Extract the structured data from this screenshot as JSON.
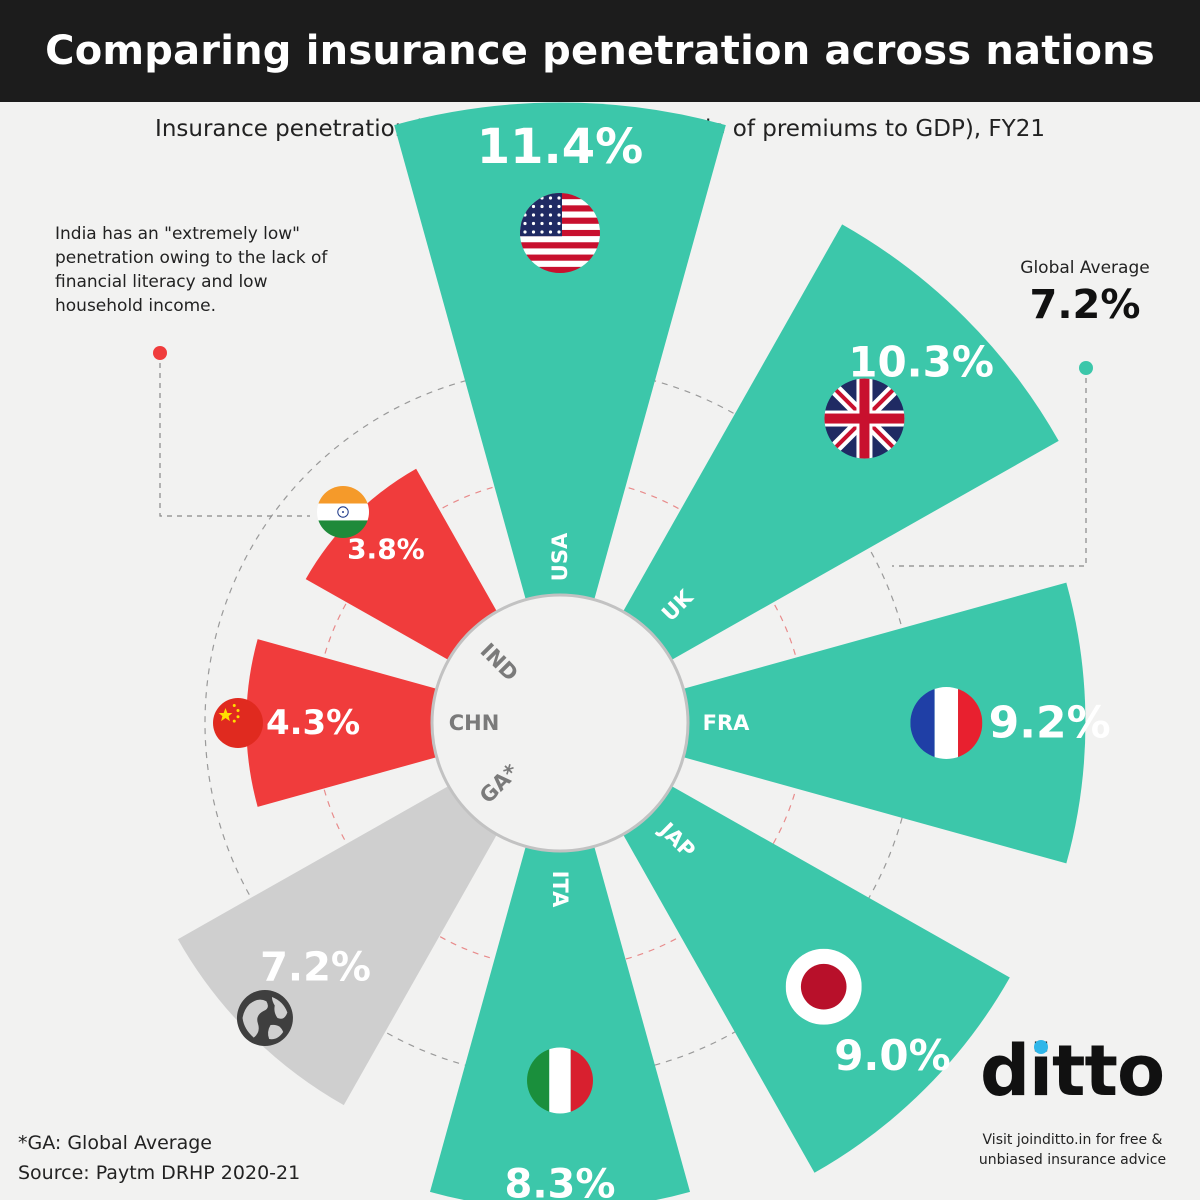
{
  "header": {
    "title": "Comparing insurance penetration across nations"
  },
  "chart_data": {
    "type": "bar",
    "title": "Comparing insurance penetration across nations",
    "subtitle": "Insurance penetration in selected countries (ratio of premiums to GDP), FY21",
    "categories": [
      "USA",
      "UK",
      "FRA",
      "JAP",
      "ITA",
      "GA*",
      "CHN",
      "IND"
    ],
    "values": [
      11.4,
      10.3,
      9.2,
      9.0,
      8.3,
      7.2,
      4.3,
      3.8
    ],
    "value_labels": [
      "11.4%",
      "10.3%",
      "9.2%",
      "9.0%",
      "8.3%",
      "7.2%",
      "4.3%",
      "3.8%"
    ],
    "flags": [
      "us-flag",
      "uk-flag",
      "france-flag",
      "japan-flag",
      "italy-flag",
      "globe-icon",
      "china-flag",
      "india-flag"
    ],
    "colors": {
      "above_average": "#3cc7aa",
      "below_average": "#f03c3c",
      "global_average": "#cfcfcf",
      "center_circle": "#f2f2f1"
    },
    "legend": "none",
    "grid": false
  },
  "annotation": {
    "india_note": "India has an \"extremely low\" penetration owing to the lack of financial literacy and low household income.",
    "global_average_label": "Global Average",
    "global_average_value": "7.2%"
  },
  "footer": {
    "footnote": "*GA: Global Average",
    "source": "Source: Paytm DRHP 2020-21",
    "brand": "ditto",
    "tagline": "Visit joinditto.in for free & unbiased insurance advice"
  }
}
